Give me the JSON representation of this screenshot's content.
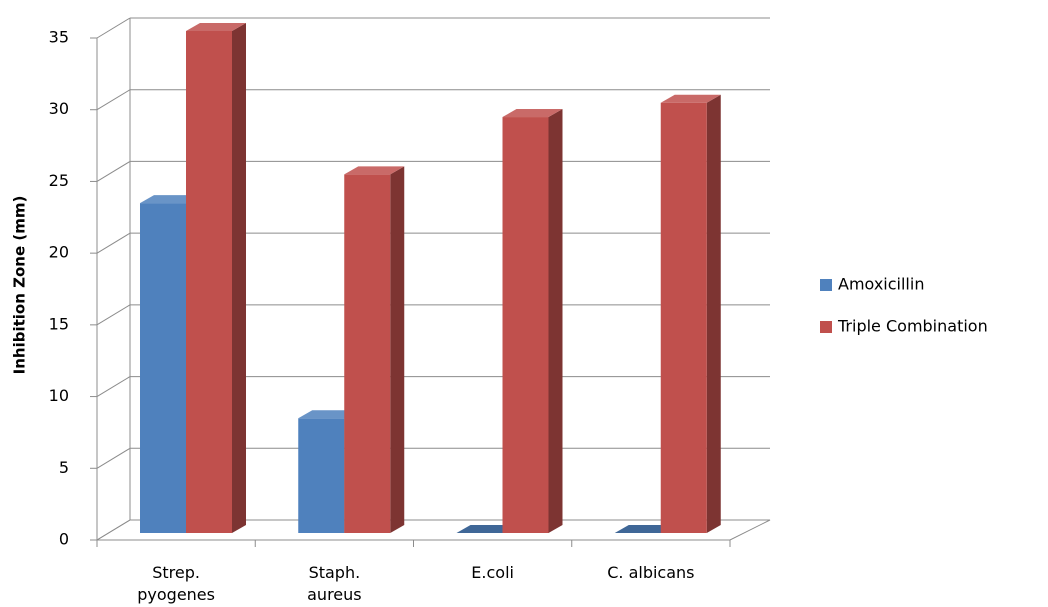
{
  "chart_data": {
    "type": "bar3d",
    "y_label": "Inhibition Zone (mm)",
    "categories": [
      "Strep. pyogenes",
      "Staph. aureus",
      "E.coli",
      "C. albicans"
    ],
    "series": [
      {
        "name": "Amoxicillin",
        "color": "#4f81bd",
        "values": [
          23,
          8,
          0,
          0
        ]
      },
      {
        "name": "Triple Combination",
        "color": "#c0504d",
        "values": [
          35,
          25,
          29,
          30
        ]
      }
    ],
    "ylim": [
      0,
      35
    ],
    "yticks": [
      0,
      5,
      10,
      15,
      20,
      25,
      30,
      35
    ],
    "grid": true,
    "legend": "right"
  }
}
